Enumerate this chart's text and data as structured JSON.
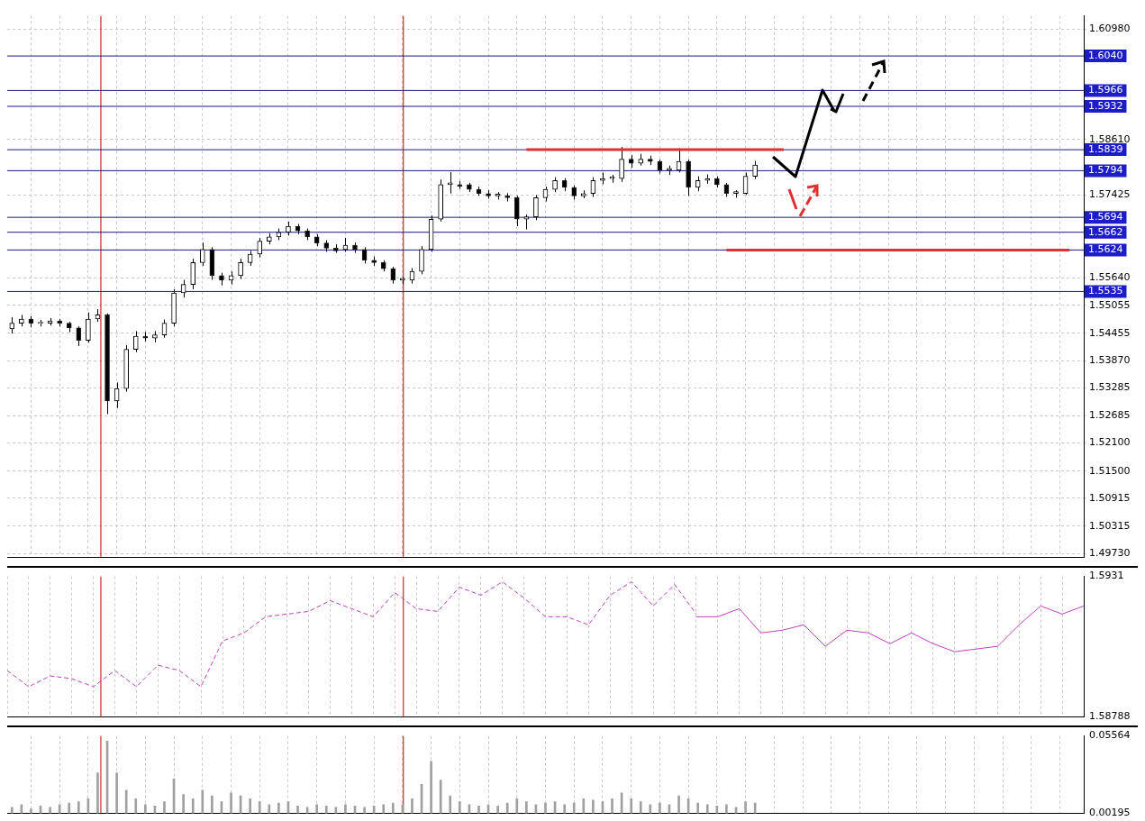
{
  "chart_data": [
    {
      "type": "candlestick",
      "ylim": [
        1.4965,
        1.6126
      ],
      "tick_labels": "y",
      "grid": true,
      "legend": false,
      "yticks": [
        {
          "value": 1.6098,
          "label": "1.60980"
        },
        {
          "value": 1.5861,
          "label": "1.58610"
        },
        {
          "value": 1.57425,
          "label": "1.57425"
        },
        {
          "value": 1.5564,
          "label": "1.55640"
        },
        {
          "value": 1.55055,
          "label": "1.55055"
        },
        {
          "value": 1.54455,
          "label": "1.54455"
        },
        {
          "value": 1.5387,
          "label": "1.53870"
        },
        {
          "value": 1.53285,
          "label": "1.53285"
        },
        {
          "value": 1.52685,
          "label": "1.52685"
        },
        {
          "value": 1.521,
          "label": "1.52100"
        },
        {
          "value": 1.515,
          "label": "1.51500"
        },
        {
          "value": 1.50915,
          "label": "1.50915"
        },
        {
          "value": 1.50315,
          "label": "1.50315"
        },
        {
          "value": 1.4973,
          "label": "1.49730"
        }
      ],
      "categories": [
        null,
        null,
        null,
        null,
        null,
        null,
        null,
        null,
        null,
        null,
        null,
        null,
        null,
        null,
        null,
        null,
        null,
        null,
        null,
        null,
        null,
        null,
        null,
        null,
        null,
        null,
        null,
        null,
        null,
        null,
        null,
        null,
        null,
        null,
        null,
        null,
        null,
        null,
        null,
        null,
        null,
        null,
        null,
        null,
        null,
        null,
        null,
        null,
        null,
        null,
        null,
        null,
        null,
        null,
        null,
        null,
        null,
        null,
        null,
        null,
        null,
        null,
        null,
        null,
        null,
        null,
        null,
        null,
        null,
        null,
        null,
        null,
        null,
        null,
        null,
        null,
        null,
        null,
        null,
        null,
        null,
        null,
        null,
        null,
        null,
        null,
        null,
        null,
        null,
        null,
        null,
        null,
        null,
        null,
        null,
        null,
        null,
        null,
        null,
        null,
        null,
        null,
        null,
        null,
        null,
        null,
        null,
        null,
        null,
        null,
        null,
        null,
        null
      ],
      "ohlc": [
        [
          1.5455,
          1.548,
          1.5445,
          1.5467
        ],
        [
          1.5467,
          1.5485,
          1.546,
          1.5476
        ],
        [
          1.5476,
          1.5482,
          1.5458,
          1.5467
        ],
        [
          1.5467,
          1.5474,
          1.546,
          1.5469
        ],
        [
          1.5467,
          1.5478,
          1.5462,
          1.5472
        ],
        [
          1.5472,
          1.5476,
          1.546,
          1.5467
        ],
        [
          1.5467,
          1.547,
          1.5448,
          1.5457
        ],
        [
          1.5457,
          1.546,
          1.5418,
          1.543
        ],
        [
          1.543,
          1.549,
          1.5425,
          1.5476
        ],
        [
          1.5476,
          1.5497,
          1.547,
          1.5485
        ],
        [
          1.5485,
          1.5488,
          1.5272,
          1.53
        ],
        [
          1.53,
          1.534,
          1.5285,
          1.5327
        ],
        [
          1.5327,
          1.542,
          1.532,
          1.5411
        ],
        [
          1.5411,
          1.545,
          1.5405,
          1.5439
        ],
        [
          1.5439,
          1.5448,
          1.5428,
          1.5435
        ],
        [
          1.5435,
          1.545,
          1.5426,
          1.5442
        ],
        [
          1.5442,
          1.5475,
          1.5436,
          1.5467
        ],
        [
          1.5467,
          1.554,
          1.546,
          1.5532
        ],
        [
          1.5532,
          1.556,
          1.5522,
          1.555
        ],
        [
          1.555,
          1.5605,
          1.554,
          1.5597
        ],
        [
          1.5597,
          1.564,
          1.559,
          1.5625
        ],
        [
          1.5625,
          1.563,
          1.556,
          1.5569
        ],
        [
          1.5569,
          1.5575,
          1.5548,
          1.5559
        ],
        [
          1.5559,
          1.5578,
          1.555,
          1.5569
        ],
        [
          1.5569,
          1.5605,
          1.5562,
          1.5597
        ],
        [
          1.5597,
          1.5622,
          1.559,
          1.5615
        ],
        [
          1.5615,
          1.565,
          1.5608,
          1.5643
        ],
        [
          1.5643,
          1.566,
          1.5636,
          1.5652
        ],
        [
          1.5652,
          1.567,
          1.5645,
          1.5662
        ],
        [
          1.5662,
          1.5685,
          1.5655,
          1.5675
        ],
        [
          1.5675,
          1.568,
          1.5658,
          1.5665
        ],
        [
          1.5665,
          1.567,
          1.5645,
          1.5652
        ],
        [
          1.5652,
          1.5658,
          1.5632,
          1.5639
        ],
        [
          1.5639,
          1.5645,
          1.562,
          1.5628
        ],
        [
          1.5628,
          1.5636,
          1.5618,
          1.5622
        ],
        [
          1.5625,
          1.565,
          1.562,
          1.5634
        ],
        [
          1.5634,
          1.564,
          1.5618,
          1.5625
        ],
        [
          1.5625,
          1.563,
          1.5595,
          1.5602
        ],
        [
          1.5602,
          1.561,
          1.559,
          1.5597
        ],
        [
          1.5597,
          1.5602,
          1.5578,
          1.5584
        ],
        [
          1.5584,
          1.5588,
          1.5552,
          1.5559
        ],
        [
          1.5559,
          1.5566,
          1.555,
          1.5563
        ],
        [
          1.5559,
          1.5585,
          1.5552,
          1.5578
        ],
        [
          1.5578,
          1.5632,
          1.5572,
          1.5625
        ],
        [
          1.5625,
          1.5698,
          1.562,
          1.569
        ],
        [
          1.569,
          1.5775,
          1.5685,
          1.5764
        ],
        [
          1.5764,
          1.5791,
          1.5745,
          1.5768
        ],
        [
          1.5764,
          1.5772,
          1.5755,
          1.576
        ],
        [
          1.5764,
          1.5768,
          1.5748,
          1.5754
        ],
        [
          1.5754,
          1.576,
          1.574,
          1.5745
        ],
        [
          1.5745,
          1.5752,
          1.5734,
          1.574
        ],
        [
          1.574,
          1.5748,
          1.5732,
          1.5744
        ],
        [
          1.574,
          1.5746,
          1.5728,
          1.5736
        ],
        [
          1.5736,
          1.574,
          1.5675,
          1.569
        ],
        [
          1.569,
          1.57,
          1.5668,
          1.5695
        ],
        [
          1.5695,
          1.5742,
          1.5688,
          1.5736
        ],
        [
          1.5736,
          1.576,
          1.5728,
          1.5754
        ],
        [
          1.5754,
          1.578,
          1.5748,
          1.5773
        ],
        [
          1.5773,
          1.5778,
          1.575,
          1.5758
        ],
        [
          1.5758,
          1.5762,
          1.5732,
          1.574
        ],
        [
          1.574,
          1.5752,
          1.5735,
          1.5745
        ],
        [
          1.5745,
          1.578,
          1.5738,
          1.5773
        ],
        [
          1.5773,
          1.579,
          1.5765,
          1.5777
        ],
        [
          1.5777,
          1.5785,
          1.5768,
          1.5781
        ],
        [
          1.5777,
          1.5845,
          1.577,
          1.5819
        ],
        [
          1.5819,
          1.5828,
          1.58,
          1.581
        ],
        [
          1.581,
          1.583,
          1.5805,
          1.5819
        ],
        [
          1.5819,
          1.5826,
          1.5806,
          1.5814
        ],
        [
          1.5814,
          1.5818,
          1.5788,
          1.5795
        ],
        [
          1.5795,
          1.5805,
          1.5785,
          1.5799
        ],
        [
          1.5795,
          1.5842,
          1.579,
          1.5814
        ],
        [
          1.5814,
          1.5818,
          1.574,
          1.5758
        ],
        [
          1.5758,
          1.5782,
          1.575,
          1.5773
        ],
        [
          1.5773,
          1.5786,
          1.5766,
          1.5777
        ],
        [
          1.5777,
          1.5782,
          1.5758,
          1.5764
        ],
        [
          1.5764,
          1.5768,
          1.5738,
          1.5745
        ],
        [
          1.5745,
          1.5752,
          1.5736,
          1.5749
        ],
        [
          1.5745,
          1.579,
          1.5742,
          1.5782
        ],
        [
          1.5782,
          1.5815,
          1.5776,
          1.5806
        ],
        null,
        null,
        null,
        null,
        null,
        null,
        null,
        null,
        null,
        null,
        null,
        null,
        null,
        null,
        null,
        null,
        null,
        null,
        null,
        null,
        null,
        null,
        null,
        null,
        null,
        null,
        null,
        null,
        null,
        null,
        null,
        null,
        null,
        null
      ],
      "series": [
        {
          "type": "line",
          "color": "#e03030",
          "values": [
            null,
            null,
            null,
            null,
            null,
            null,
            null,
            null,
            null,
            null,
            null,
            null,
            null,
            null,
            null,
            null,
            null,
            null,
            null,
            null,
            null,
            null,
            null,
            null,
            null,
            null,
            null,
            null,
            null,
            null,
            null,
            null,
            null,
            null,
            null,
            null,
            null,
            null,
            null,
            null,
            null,
            null,
            null,
            null,
            null,
            null,
            null,
            null,
            null,
            null,
            null,
            null,
            null,
            null,
            1.5839,
            1.5839,
            1.5839,
            1.5839,
            1.5839,
            1.5839,
            1.5839,
            1.5839,
            1.5839,
            1.5839,
            1.5839,
            1.5839,
            1.5839,
            1.5839,
            1.5839,
            1.5839,
            1.5839,
            1.5839,
            1.5839,
            1.5839,
            1.5839,
            1.5839,
            1.5839,
            1.5839,
            1.5839,
            1.5839,
            1.5839,
            1.5839,
            null,
            null,
            null,
            null,
            null,
            null,
            null,
            null,
            null,
            null,
            null,
            null,
            null,
            null,
            null,
            null,
            null,
            null,
            null,
            null,
            null,
            null,
            null,
            null,
            null,
            null,
            null,
            null,
            null,
            null,
            null
          ]
        },
        {
          "type": "line",
          "color": "#e03030",
          "values": [
            null,
            null,
            null,
            null,
            null,
            null,
            null,
            null,
            null,
            null,
            null,
            null,
            null,
            null,
            null,
            null,
            null,
            null,
            null,
            null,
            null,
            null,
            null,
            null,
            null,
            null,
            null,
            null,
            null,
            null,
            null,
            null,
            null,
            null,
            null,
            null,
            null,
            null,
            null,
            null,
            null,
            null,
            null,
            null,
            null,
            null,
            null,
            null,
            null,
            null,
            null,
            null,
            null,
            null,
            null,
            null,
            null,
            null,
            null,
            null,
            null,
            null,
            null,
            null,
            null,
            null,
            null,
            null,
            null,
            null,
            null,
            null,
            null,
            null,
            null,
            1.5624,
            1.5624,
            1.5624,
            1.5624,
            1.5624,
            1.5624,
            1.5624,
            1.5624,
            1.5624,
            1.5624,
            1.5624,
            1.5624,
            1.5624,
            1.5624,
            1.5624,
            1.5624,
            1.5624,
            1.5624,
            1.5624,
            1.5624,
            1.5624,
            1.5624,
            1.5624,
            1.5624,
            1.5624,
            1.5624,
            1.5624,
            1.5624,
            1.5624,
            1.5624,
            1.5624,
            1.5624,
            1.5624,
            1.5624,
            1.5624,
            1.5624,
            1.5624,
            null
          ]
        }
      ],
      "ref_lines": [
        {
          "axis": "y",
          "value": 1.604,
          "label": "1.6040",
          "color": "#1a1a80"
        },
        {
          "axis": "y",
          "value": 1.5966,
          "label": "1.5966",
          "color": "#1a1a80"
        },
        {
          "axis": "y",
          "value": 1.5932,
          "label": "1.5932",
          "color": "#1a1a80"
        },
        {
          "axis": "y",
          "value": 1.5839,
          "label": "1.5839",
          "color": "#1a1a80"
        },
        {
          "axis": "y",
          "value": 1.5794,
          "label": "1.5794",
          "color": "#1a1a80"
        },
        {
          "axis": "y",
          "value": 1.5694,
          "label": "1.5694",
          "color": "#1a1a80"
        },
        {
          "axis": "y",
          "value": 1.5662,
          "label": "1.5662",
          "color": "#1a1a80"
        },
        {
          "axis": "y",
          "value": 1.5624,
          "label": "1.5624",
          "color": "#1a1a80"
        },
        {
          "axis": "y",
          "value": 1.5535,
          "label": "1.5535",
          "color": "#1a1a80"
        }
      ]
    },
    {
      "type": "line",
      "ylim": [
        1.58788,
        1.5931
      ],
      "yticks": [
        {
          "value": 1.5931,
          "label": "1.5931"
        },
        {
          "value": 1.58788,
          "label": "1.58788"
        }
      ],
      "tick_labels": "y",
      "grid": "x",
      "legend": false,
      "categories": [
        null,
        null,
        null,
        null,
        null,
        null,
        null,
        null,
        null,
        null,
        null,
        null,
        null,
        null,
        null,
        null,
        null,
        null,
        null,
        null,
        null,
        null,
        null,
        null,
        null,
        null,
        null,
        null,
        null,
        null,
        null,
        null,
        null,
        null,
        null,
        null,
        null,
        null,
        null,
        null,
        null,
        null,
        null,
        null,
        null,
        null,
        null,
        null,
        null,
        null,
        null
      ],
      "series": [
        {
          "color": "#c040c0",
          "line_style": "dashed",
          "values": [
            1.5896,
            1.589,
            1.5894,
            1.5893,
            1.589,
            1.5896,
            1.589,
            1.5898,
            1.5896,
            1.589,
            1.5907,
            1.591,
            1.5916,
            1.5917,
            1.5918,
            1.5922,
            1.5919,
            1.5916,
            1.5925,
            1.5919,
            1.5918,
            1.5927,
            1.5924,
            1.5929,
            1.5923,
            1.5916,
            1.5916,
            1.5913,
            1.5924,
            1.5929,
            1.592,
            1.5928,
            1.5917,
            null,
            null,
            null,
            null,
            null,
            null,
            null,
            null,
            null,
            null,
            null,
            null,
            null,
            null,
            null,
            null,
            null,
            null
          ]
        },
        {
          "color": "#c040c0",
          "line_style": "solid",
          "values": [
            null,
            null,
            null,
            null,
            null,
            null,
            null,
            null,
            null,
            null,
            null,
            null,
            null,
            null,
            null,
            null,
            null,
            null,
            null,
            null,
            null,
            null,
            null,
            null,
            null,
            null,
            null,
            null,
            null,
            null,
            null,
            null,
            1.5916,
            1.5916,
            1.5919,
            1.591,
            1.5911,
            1.5913,
            1.5905,
            1.5911,
            1.591,
            1.5906,
            1.591,
            1.5906,
            1.5903,
            1.5904,
            1.5905,
            1.5913,
            1.592,
            1.5917,
            1.592
          ]
        }
      ]
    },
    {
      "type": "bar",
      "ylim": [
        0.00195,
        0.05564
      ],
      "yticks": [
        {
          "value": 0.05564,
          "label": "0.05564"
        },
        {
          "value": 0.00195,
          "label": "0.00195"
        }
      ],
      "tick_labels": "y",
      "grid": "x",
      "legend": false,
      "color": "#a0a0a0",
      "categories": [
        null,
        null,
        null,
        null,
        null,
        null,
        null,
        null,
        null,
        null,
        null,
        null,
        null,
        null,
        null,
        null,
        null,
        null,
        null,
        null,
        null,
        null,
        null,
        null,
        null,
        null,
        null,
        null,
        null,
        null,
        null,
        null,
        null,
        null,
        null,
        null,
        null,
        null,
        null,
        null,
        null,
        null,
        null,
        null,
        null,
        null,
        null,
        null,
        null,
        null,
        null,
        null,
        null,
        null,
        null,
        null,
        null,
        null,
        null,
        null,
        null,
        null,
        null,
        null,
        null,
        null,
        null,
        null,
        null,
        null,
        null,
        null,
        null,
        null,
        null,
        null,
        null,
        null,
        null,
        null,
        null,
        null,
        null,
        null,
        null,
        null,
        null,
        null,
        null,
        null,
        null,
        null,
        null,
        null,
        null,
        null,
        null,
        null,
        null,
        null,
        null,
        null,
        null,
        null,
        null,
        null,
        null,
        null,
        null,
        null,
        null,
        null,
        null
      ],
      "values": [
        0.006,
        0.008,
        0.005,
        0.007,
        0.006,
        0.008,
        0.009,
        0.01,
        0.012,
        0.03,
        0.052,
        0.03,
        0.018,
        0.012,
        0.008,
        0.007,
        0.01,
        0.026,
        0.015,
        0.012,
        0.018,
        0.014,
        0.01,
        0.016,
        0.014,
        0.012,
        0.01,
        0.008,
        0.009,
        0.01,
        0.007,
        0.006,
        0.008,
        0.007,
        0.006,
        0.008,
        0.007,
        0.006,
        0.007,
        0.008,
        0.009,
        0.008,
        0.012,
        0.022,
        0.038,
        0.025,
        0.014,
        0.01,
        0.008,
        0.007,
        0.008,
        0.007,
        0.009,
        0.012,
        0.01,
        0.008,
        0.009,
        0.01,
        0.008,
        0.009,
        0.012,
        0.011,
        0.01,
        0.012,
        0.016,
        0.012,
        0.01,
        0.008,
        0.009,
        0.008,
        0.014,
        0.012,
        0.009,
        0.008,
        0.007,
        0.008,
        0.006,
        0.01,
        0.009,
        null,
        null,
        null,
        null,
        null,
        null,
        null,
        null,
        null,
        null,
        null,
        null,
        null,
        null,
        null,
        null,
        null,
        null,
        null,
        null,
        null,
        null,
        null,
        null,
        null,
        null,
        null,
        null,
        null,
        null,
        null,
        null,
        null,
        null
      ]
    }
  ]
}
